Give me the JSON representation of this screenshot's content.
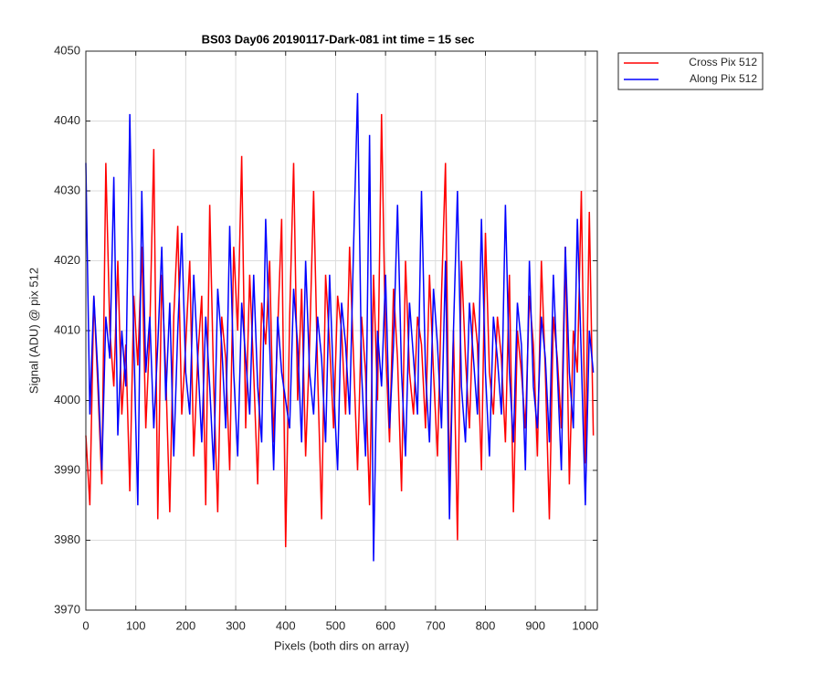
{
  "chart_data": {
    "type": "line",
    "title": "BS03 Day06 20190117-Dark-081 int time = 15 sec",
    "xlabel": "Pixels (both dirs on array)",
    "ylabel": "Signal (ADU) @ pix 512",
    "xlim": [
      0,
      1024
    ],
    "ylim": [
      3970,
      4050
    ],
    "xticks": [
      0,
      100,
      200,
      300,
      400,
      500,
      600,
      700,
      800,
      900,
      1000
    ],
    "yticks": [
      3970,
      3980,
      3990,
      4000,
      4010,
      4020,
      4030,
      4040,
      4050
    ],
    "grid": true,
    "legend": "outside-top-right",
    "x": [
      0,
      8,
      16,
      24,
      32,
      40,
      48,
      56,
      64,
      72,
      80,
      88,
      96,
      104,
      112,
      120,
      128,
      136,
      144,
      152,
      160,
      168,
      176,
      184,
      192,
      200,
      208,
      216,
      224,
      232,
      240,
      248,
      256,
      264,
      272,
      280,
      288,
      296,
      304,
      312,
      320,
      328,
      336,
      344,
      352,
      360,
      368,
      376,
      384,
      392,
      400,
      408,
      416,
      424,
      432,
      440,
      448,
      456,
      464,
      472,
      480,
      488,
      496,
      504,
      512,
      520,
      528,
      536,
      544,
      552,
      560,
      568,
      576,
      584,
      592,
      600,
      608,
      616,
      624,
      632,
      640,
      648,
      656,
      664,
      672,
      680,
      688,
      696,
      704,
      712,
      720,
      728,
      736,
      744,
      752,
      760,
      768,
      776,
      784,
      792,
      800,
      808,
      816,
      824,
      832,
      840,
      848,
      856,
      864,
      872,
      880,
      888,
      896,
      904,
      912,
      920,
      928,
      936,
      944,
      952,
      960,
      968,
      976,
      984,
      992,
      1000,
      1008,
      1016
    ],
    "series": [
      {
        "name": "Cross Pix 512",
        "color": "#ff0000",
        "values": [
          3995,
          3985,
          4015,
          4002,
          3988,
          4034,
          4010,
          4002,
          4020,
          3998,
          4008,
          3987,
          4015,
          4005,
          4022,
          3996,
          4010,
          4036,
          3983,
          4018,
          4004,
          3984,
          4012,
          4025,
          3998,
          4008,
          4020,
          3992,
          4006,
          4015,
          3985,
          4028,
          4002,
          3984,
          4012,
          4006,
          3990,
          4022,
          4010,
          4035,
          3996,
          4018,
          4004,
          3988,
          4014,
          4008,
          4020,
          3994,
          4010,
          4026,
          3979,
          4012,
          4034,
          4000,
          4016,
          3992,
          4008,
          4030,
          4004,
          3983,
          4018,
          4008,
          3996,
          4015,
          4010,
          3998,
          4022,
          4006,
          3990,
          4012,
          4004,
          3985,
          4018,
          4000,
          4041,
          4008,
          3994,
          4016,
          4006,
          3987,
          4020,
          4004,
          3998,
          4012,
          4008,
          3996,
          4018,
          4004,
          3992,
          4015,
          4034,
          3988,
          4010,
          3980,
          4020,
          4006,
          3996,
          4014,
          4008,
          3990,
          4024,
          4004,
          3998,
          4012,
          4006,
          3994,
          4018,
          3984,
          4010,
          4004,
          3996,
          4015,
          4008,
          3992,
          4020,
          4004,
          3983,
          4012,
          4006,
          3996,
          4022,
          3988,
          4010,
          4004,
          4030,
          3991,
          4027,
          3995
        ]
      },
      {
        "name": "Along Pix 512",
        "color": "#0000ff",
        "values": [
          4034,
          3998,
          4015,
          4004,
          3990,
          4012,
          4006,
          4032,
          3995,
          4010,
          4002,
          4041,
          4008,
          3985,
          4030,
          4004,
          4012,
          3996,
          4008,
          4022,
          4000,
          4014,
          3992,
          4010,
          4024,
          4004,
          3998,
          4018,
          4006,
          3994,
          4012,
          4002,
          3990,
          4016,
          4008,
          3996,
          4025,
          4004,
          3992,
          4014,
          4006,
          3998,
          4018,
          4002,
          3994,
          4026,
          4008,
          3990,
          4012,
          4004,
          4000,
          3996,
          4016,
          4008,
          3994,
          4020,
          4004,
          3998,
          4012,
          4006,
          3994,
          4018,
          4002,
          3990,
          4014,
          4008,
          3998,
          4022,
          4044,
          4004,
          3992,
          4038,
          3977,
          4010,
          4002,
          4018,
          3996,
          4008,
          4028,
          4004,
          3992,
          4014,
          4006,
          3998,
          4030,
          4004,
          3994,
          4016,
          4008,
          3996,
          4020,
          3983,
          4010,
          4030,
          4002,
          3994,
          4014,
          4006,
          3998,
          4026,
          4004,
          3992,
          4012,
          4006,
          3998,
          4028,
          4004,
          3994,
          4014,
          4008,
          3990,
          4020,
          4002,
          3996,
          4012,
          4006,
          3994,
          4018,
          4004,
          3990,
          4022,
          4004,
          3996,
          4026,
          4006,
          3985,
          4010,
          4004
        ]
      }
    ]
  }
}
